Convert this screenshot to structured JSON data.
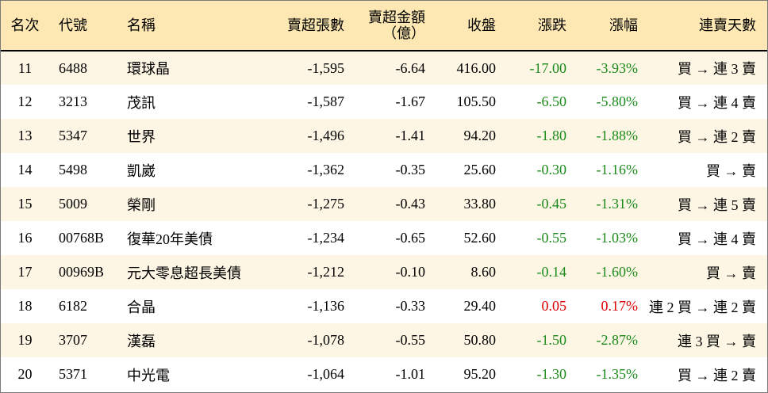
{
  "headers": {
    "rank": "名次",
    "code": "代號",
    "name": "名稱",
    "sell_excess_qty": "賣超張數",
    "sell_excess_amt_line1": "賣超金額",
    "sell_excess_amt_line2": "（億）",
    "close": "收盤",
    "change": "漲跌",
    "change_pct": "漲幅",
    "consecutive_days": "連賣天數"
  },
  "rows": [
    {
      "rank": "11",
      "code": "6488",
      "name": "環球晶",
      "qty": "-1,595",
      "amt": "-6.64",
      "close": "416.00",
      "change": "-17.00",
      "pct": "-3.93%",
      "days": "買 → 連 3 賣",
      "trend": "down"
    },
    {
      "rank": "12",
      "code": "3213",
      "name": "茂訊",
      "qty": "-1,587",
      "amt": "-1.67",
      "close": "105.50",
      "change": "-6.50",
      "pct": "-5.80%",
      "days": "買 → 連 4 賣",
      "trend": "down"
    },
    {
      "rank": "13",
      "code": "5347",
      "name": "世界",
      "qty": "-1,496",
      "amt": "-1.41",
      "close": "94.20",
      "change": "-1.80",
      "pct": "-1.88%",
      "days": "買 → 連 2 賣",
      "trend": "down"
    },
    {
      "rank": "14",
      "code": "5498",
      "name": "凱崴",
      "qty": "-1,362",
      "amt": "-0.35",
      "close": "25.60",
      "change": "-0.30",
      "pct": "-1.16%",
      "days": "買 → 賣",
      "trend": "down"
    },
    {
      "rank": "15",
      "code": "5009",
      "name": "榮剛",
      "qty": "-1,275",
      "amt": "-0.43",
      "close": "33.80",
      "change": "-0.45",
      "pct": "-1.31%",
      "days": "買 → 連 5 賣",
      "trend": "down"
    },
    {
      "rank": "16",
      "code": "00768B",
      "name": "復華20年美債",
      "qty": "-1,234",
      "amt": "-0.65",
      "close": "52.60",
      "change": "-0.55",
      "pct": "-1.03%",
      "days": "買 → 連 4 賣",
      "trend": "down"
    },
    {
      "rank": "17",
      "code": "00969B",
      "name": "元大零息超長美債",
      "qty": "-1,212",
      "amt": "-0.10",
      "close": "8.60",
      "change": "-0.14",
      "pct": "-1.60%",
      "days": "買 → 賣",
      "trend": "down"
    },
    {
      "rank": "18",
      "code": "6182",
      "name": "合晶",
      "qty": "-1,136",
      "amt": "-0.33",
      "close": "29.40",
      "change": "0.05",
      "pct": "0.17%",
      "days": "連 2 買 → 連 2 賣",
      "trend": "up"
    },
    {
      "rank": "19",
      "code": "3707",
      "name": "漢磊",
      "qty": "-1,078",
      "amt": "-0.55",
      "close": "50.80",
      "change": "-1.50",
      "pct": "-2.87%",
      "days": "連 3 買 → 賣",
      "trend": "down"
    },
    {
      "rank": "20",
      "code": "5371",
      "name": "中光電",
      "qty": "-1,064",
      "amt": "-1.01",
      "close": "95.20",
      "change": "-1.30",
      "pct": "-1.35%",
      "days": "買 → 連 2 賣",
      "trend": "down"
    }
  ],
  "colors": {
    "header_bg": "#fde8b3",
    "row_alt_bg": "#fef6e4",
    "down": "#1a8a1a",
    "up": "#e00000"
  }
}
